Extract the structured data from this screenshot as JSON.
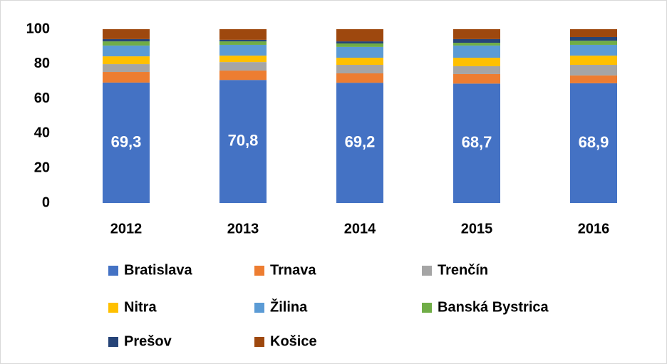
{
  "chart_data": {
    "type": "stacked_bar",
    "categories": [
      "2012",
      "2013",
      "2014",
      "2015",
      "2016"
    ],
    "ylim": [
      0,
      100
    ],
    "yticks": [
      0,
      20,
      40,
      60,
      80,
      100
    ],
    "series": [
      {
        "name": "Bratislava",
        "color": "#4472c4",
        "values": [
          69.3,
          70.8,
          69.2,
          68.7,
          68.9
        ],
        "value_labels": [
          "69,3",
          "70,8",
          "69,2",
          "68,7",
          "68,9"
        ]
      },
      {
        "name": "Trnava",
        "color": "#ed7d31",
        "values": [
          6.1,
          5.4,
          5.4,
          5.5,
          4.5
        ]
      },
      {
        "name": "Trenčín",
        "color": "#a5a5a5",
        "values": [
          4.5,
          4.9,
          4.9,
          4.5,
          6.1
        ]
      },
      {
        "name": "Nitra",
        "color": "#ffc000",
        "values": [
          4.5,
          3.7,
          4.1,
          4.9,
          5.3
        ]
      },
      {
        "name": "Žilina",
        "color": "#5b9bd5",
        "values": [
          6.2,
          6.2,
          6.2,
          7.0,
          6.2
        ]
      },
      {
        "name": "Banská Bystrica",
        "color": "#70ad47",
        "values": [
          2.4,
          2.0,
          2.0,
          1.6,
          2.4
        ]
      },
      {
        "name": "Prešov",
        "color": "#264478",
        "values": [
          1.3,
          0.9,
          1.2,
          2.1,
          2.1
        ]
      },
      {
        "name": "Košice",
        "color": "#9e480e",
        "values": [
          5.7,
          6.1,
          7.0,
          5.7,
          4.5
        ]
      }
    ]
  }
}
